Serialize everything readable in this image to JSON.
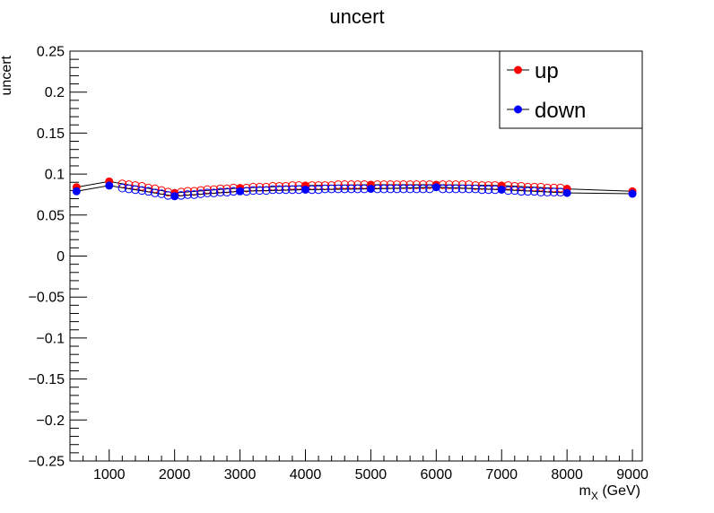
{
  "chart_data": {
    "type": "scatter",
    "title": "uncert",
    "xlabel_main": "m",
    "xlabel_sub": "X",
    "xlabel_unit": "(GeV)",
    "ylabel": "uncert",
    "xlim": [
      400,
      9150
    ],
    "ylim": [
      -0.25,
      0.25
    ],
    "xticks": [
      1000,
      2000,
      3000,
      4000,
      5000,
      6000,
      7000,
      8000,
      9000
    ],
    "yticks": [
      -0.25,
      -0.2,
      -0.15,
      -0.1,
      -0.05,
      0,
      0.05,
      0.1,
      0.15,
      0.2,
      0.25
    ],
    "yticklabels": [
      "−0.25",
      "−0.2",
      "−0.15",
      "−0.1",
      "−0.05",
      "0",
      "0.05",
      "0.1",
      "0.15",
      "0.2",
      "0.25"
    ],
    "legend_position": "top-right",
    "series": [
      {
        "name": "up",
        "color": "#ff0000",
        "filled": {
          "x": [
            500,
            1000,
            2000,
            3000,
            4000,
            5000,
            6000,
            7000,
            8000,
            9000
          ],
          "y": [
            0.084,
            0.091,
            0.077,
            0.083,
            0.086,
            0.087,
            0.087,
            0.086,
            0.082,
            0.079
          ]
        },
        "open": {
          "x": [
            1200,
            1300,
            1400,
            1500,
            1600,
            1700,
            1800,
            1900,
            2100,
            2200,
            2300,
            2400,
            2500,
            2600,
            2700,
            2800,
            2900,
            3100,
            3200,
            3300,
            3400,
            3500,
            3600,
            3700,
            3800,
            3900,
            4100,
            4200,
            4300,
            4400,
            4500,
            4600,
            4700,
            4800,
            4900,
            5100,
            5200,
            5300,
            5400,
            5500,
            5600,
            5700,
            5800,
            5900,
            6100,
            6200,
            6300,
            6400,
            6500,
            6600,
            6700,
            6800,
            6900,
            7100,
            7200,
            7300,
            7400,
            7500,
            7600,
            7700,
            7800,
            7900
          ],
          "y": [
            0.088,
            0.087,
            0.086,
            0.085,
            0.083,
            0.082,
            0.08,
            0.078,
            0.078,
            0.079,
            0.079,
            0.08,
            0.081,
            0.081,
            0.082,
            0.082,
            0.083,
            0.083,
            0.084,
            0.084,
            0.084,
            0.085,
            0.085,
            0.085,
            0.086,
            0.086,
            0.086,
            0.086,
            0.086,
            0.086,
            0.087,
            0.087,
            0.087,
            0.087,
            0.087,
            0.087,
            0.087,
            0.087,
            0.087,
            0.087,
            0.087,
            0.087,
            0.087,
            0.087,
            0.087,
            0.087,
            0.087,
            0.087,
            0.087,
            0.086,
            0.086,
            0.086,
            0.086,
            0.086,
            0.085,
            0.085,
            0.084,
            0.084,
            0.084,
            0.083,
            0.083,
            0.083
          ]
        }
      },
      {
        "name": "down",
        "color": "#0000ff",
        "filled": {
          "x": [
            500,
            1000,
            2000,
            3000,
            4000,
            5000,
            6000,
            7000,
            8000,
            9000
          ],
          "y": [
            0.079,
            0.086,
            0.073,
            0.079,
            0.081,
            0.082,
            0.084,
            0.081,
            0.077,
            0.076
          ]
        },
        "open": {
          "x": [
            1200,
            1300,
            1400,
            1500,
            1600,
            1700,
            1800,
            1900,
            2100,
            2200,
            2300,
            2400,
            2500,
            2600,
            2700,
            2800,
            2900,
            3100,
            3200,
            3300,
            3400,
            3500,
            3600,
            3700,
            3800,
            3900,
            4100,
            4200,
            4300,
            4400,
            4500,
            4600,
            4700,
            4800,
            4900,
            5100,
            5200,
            5300,
            5400,
            5500,
            5600,
            5700,
            5800,
            5900,
            6100,
            6200,
            6300,
            6400,
            6500,
            6600,
            6700,
            6800,
            6900,
            7100,
            7200,
            7300,
            7400,
            7500,
            7600,
            7700,
            7800,
            7900
          ],
          "y": [
            0.083,
            0.082,
            0.081,
            0.08,
            0.079,
            0.077,
            0.076,
            0.074,
            0.074,
            0.075,
            0.075,
            0.076,
            0.077,
            0.077,
            0.078,
            0.078,
            0.079,
            0.079,
            0.08,
            0.08,
            0.08,
            0.081,
            0.081,
            0.081,
            0.081,
            0.081,
            0.081,
            0.081,
            0.082,
            0.082,
            0.082,
            0.082,
            0.082,
            0.082,
            0.082,
            0.082,
            0.082,
            0.082,
            0.082,
            0.082,
            0.082,
            0.082,
            0.082,
            0.082,
            0.082,
            0.082,
            0.082,
            0.082,
            0.082,
            0.082,
            0.081,
            0.081,
            0.081,
            0.08,
            0.08,
            0.079,
            0.079,
            0.079,
            0.078,
            0.078,
            0.078,
            0.078
          ]
        }
      }
    ]
  }
}
